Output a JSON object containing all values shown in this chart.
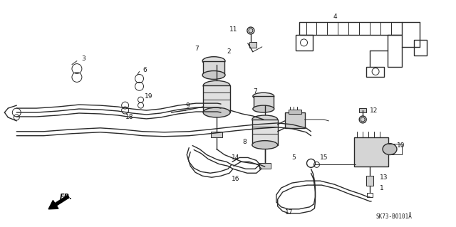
{
  "background_color": "#ffffff",
  "fig_width": 6.4,
  "fig_height": 3.19,
  "dpi": 100,
  "diagram_code": "SK73-B0101Å",
  "line_color": "#2a2a2a",
  "text_color": "#1a1a1a",
  "label_fontsize": 6.5,
  "diagram_code_fontsize": 5.5
}
